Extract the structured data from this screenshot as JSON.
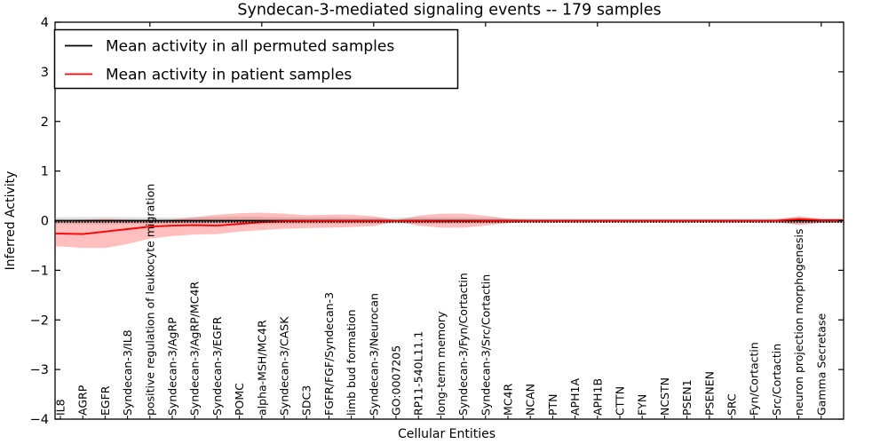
{
  "chart_data": {
    "type": "line",
    "title": "Syndecan-3-mediated signaling events -- 179 samples",
    "xlabel": "Cellular Entities",
    "ylabel": "Inferred Activity",
    "ylim": [
      -4,
      4
    ],
    "yticks": [
      4,
      3,
      2,
      1,
      0,
      -1,
      -2,
      -3,
      -4
    ],
    "ytick_labels": [
      "4",
      "3",
      "2",
      "1",
      "0",
      "−1",
      "−2",
      "−3",
      "−4"
    ],
    "grid": false,
    "legend_position": "upper-left",
    "frame_color": "#000000",
    "background_color": "#ffffff",
    "categories": [
      "IL8",
      "AGRP",
      "EGFR",
      "Syndecan-3/IL8",
      "positive regulation of leukocyte migration",
      "Syndecan-3/AgRP",
      "Syndecan-3/AgRP/MC4R",
      "Syndecan-3/EGFR",
      "POMC",
      "alpha-MSH/MC4R",
      "Syndecan-3/CASK",
      "SDC3",
      "FGFR/FGF/Syndecan-3",
      "limb bud formation",
      "Syndecan-3/Neurocan",
      "GO:0007205",
      "RP11-540L11.1",
      "long-term memory",
      "Syndecan-3/Fyn/Cortactin",
      "Syndecan-3/Src/Cortactin",
      "MC4R",
      "NCAN",
      "PTN",
      "APH1A",
      "APH1B",
      "CTTN",
      "FYN",
      "NCSTN",
      "PSEN1",
      "PSENEN",
      "SRC",
      "Fyn/Cortactin",
      "Src/Cortactin",
      "neuron projection morphogenesis",
      "Gamma Secretase"
    ],
    "series": [
      {
        "name": "Mean activity in all permuted samples",
        "color": "#000000",
        "line_style": "solid-plus-dotted-markers",
        "values": [
          0,
          0,
          0,
          0,
          0,
          0,
          0,
          0,
          0,
          0,
          0,
          0,
          0,
          0,
          0,
          0,
          0,
          0,
          0,
          0,
          0,
          0,
          0,
          0,
          0,
          0,
          0,
          0,
          0,
          0,
          0,
          0,
          0,
          0,
          0
        ],
        "band_hi": [
          0.07,
          0.072,
          0.075,
          0.07,
          0.065,
          0.065,
          0.07,
          0.075,
          0.08,
          0.075,
          0.07,
          0.065,
          0.065,
          0.06,
          0.06,
          0.06,
          0.065,
          0.065,
          0.06,
          0.055,
          0.05,
          0.05,
          0.045,
          0.045,
          0.04,
          0.04,
          0.04,
          0.04,
          0.04,
          0.04,
          0.04,
          0.045,
          0.05,
          0.07,
          0.05
        ],
        "band_lo": [
          -0.07,
          -0.072,
          -0.075,
          -0.07,
          -0.065,
          -0.065,
          -0.07,
          -0.075,
          -0.08,
          -0.075,
          -0.07,
          -0.065,
          -0.065,
          -0.06,
          -0.06,
          -0.06,
          -0.065,
          -0.065,
          -0.06,
          -0.055,
          -0.05,
          -0.05,
          -0.045,
          -0.045,
          -0.04,
          -0.04,
          -0.04,
          -0.04,
          -0.04,
          -0.04,
          -0.04,
          -0.045,
          -0.05,
          -0.07,
          -0.05
        ],
        "band_color": "#999999",
        "band_opacity": 0.3
      },
      {
        "name": "Mean activity in patient samples",
        "color": "#ff0000",
        "line_style": "solid",
        "values": [
          -0.26,
          -0.27,
          -0.22,
          -0.17,
          -0.12,
          -0.1,
          -0.09,
          -0.1,
          -0.065,
          -0.03,
          -0.012,
          -0.008,
          -0.008,
          -0.008,
          -0.005,
          -0.003,
          -0.008,
          -0.012,
          -0.012,
          -0.008,
          -0.004,
          -0.003,
          -0.003,
          -0.003,
          -0.003,
          -0.003,
          -0.003,
          -0.003,
          -0.003,
          -0.003,
          -0.003,
          -0.003,
          0.0,
          0.03,
          0.01
        ],
        "band_hi": [
          0.01,
          0.02,
          0.035,
          0.02,
          0.01,
          0.02,
          0.07,
          0.12,
          0.15,
          0.16,
          0.14,
          0.11,
          0.12,
          0.12,
          0.09,
          0.01,
          0.1,
          0.14,
          0.14,
          0.1,
          0.04,
          0.015,
          0.015,
          0.015,
          0.015,
          0.015,
          0.015,
          0.015,
          0.015,
          0.015,
          0.015,
          0.015,
          0.02,
          0.09,
          0.03
        ],
        "band_lo": [
          -0.52,
          -0.55,
          -0.55,
          -0.47,
          -0.36,
          -0.31,
          -0.28,
          -0.27,
          -0.22,
          -0.19,
          -0.16,
          -0.15,
          -0.14,
          -0.13,
          -0.11,
          -0.015,
          -0.1,
          -0.14,
          -0.14,
          -0.1,
          -0.05,
          -0.02,
          -0.02,
          -0.02,
          -0.02,
          -0.02,
          -0.02,
          -0.02,
          -0.02,
          -0.02,
          -0.02,
          -0.02,
          -0.02,
          -0.09,
          -0.04
        ],
        "band_color": "#ff2a2a",
        "band_opacity": 0.3
      }
    ]
  }
}
